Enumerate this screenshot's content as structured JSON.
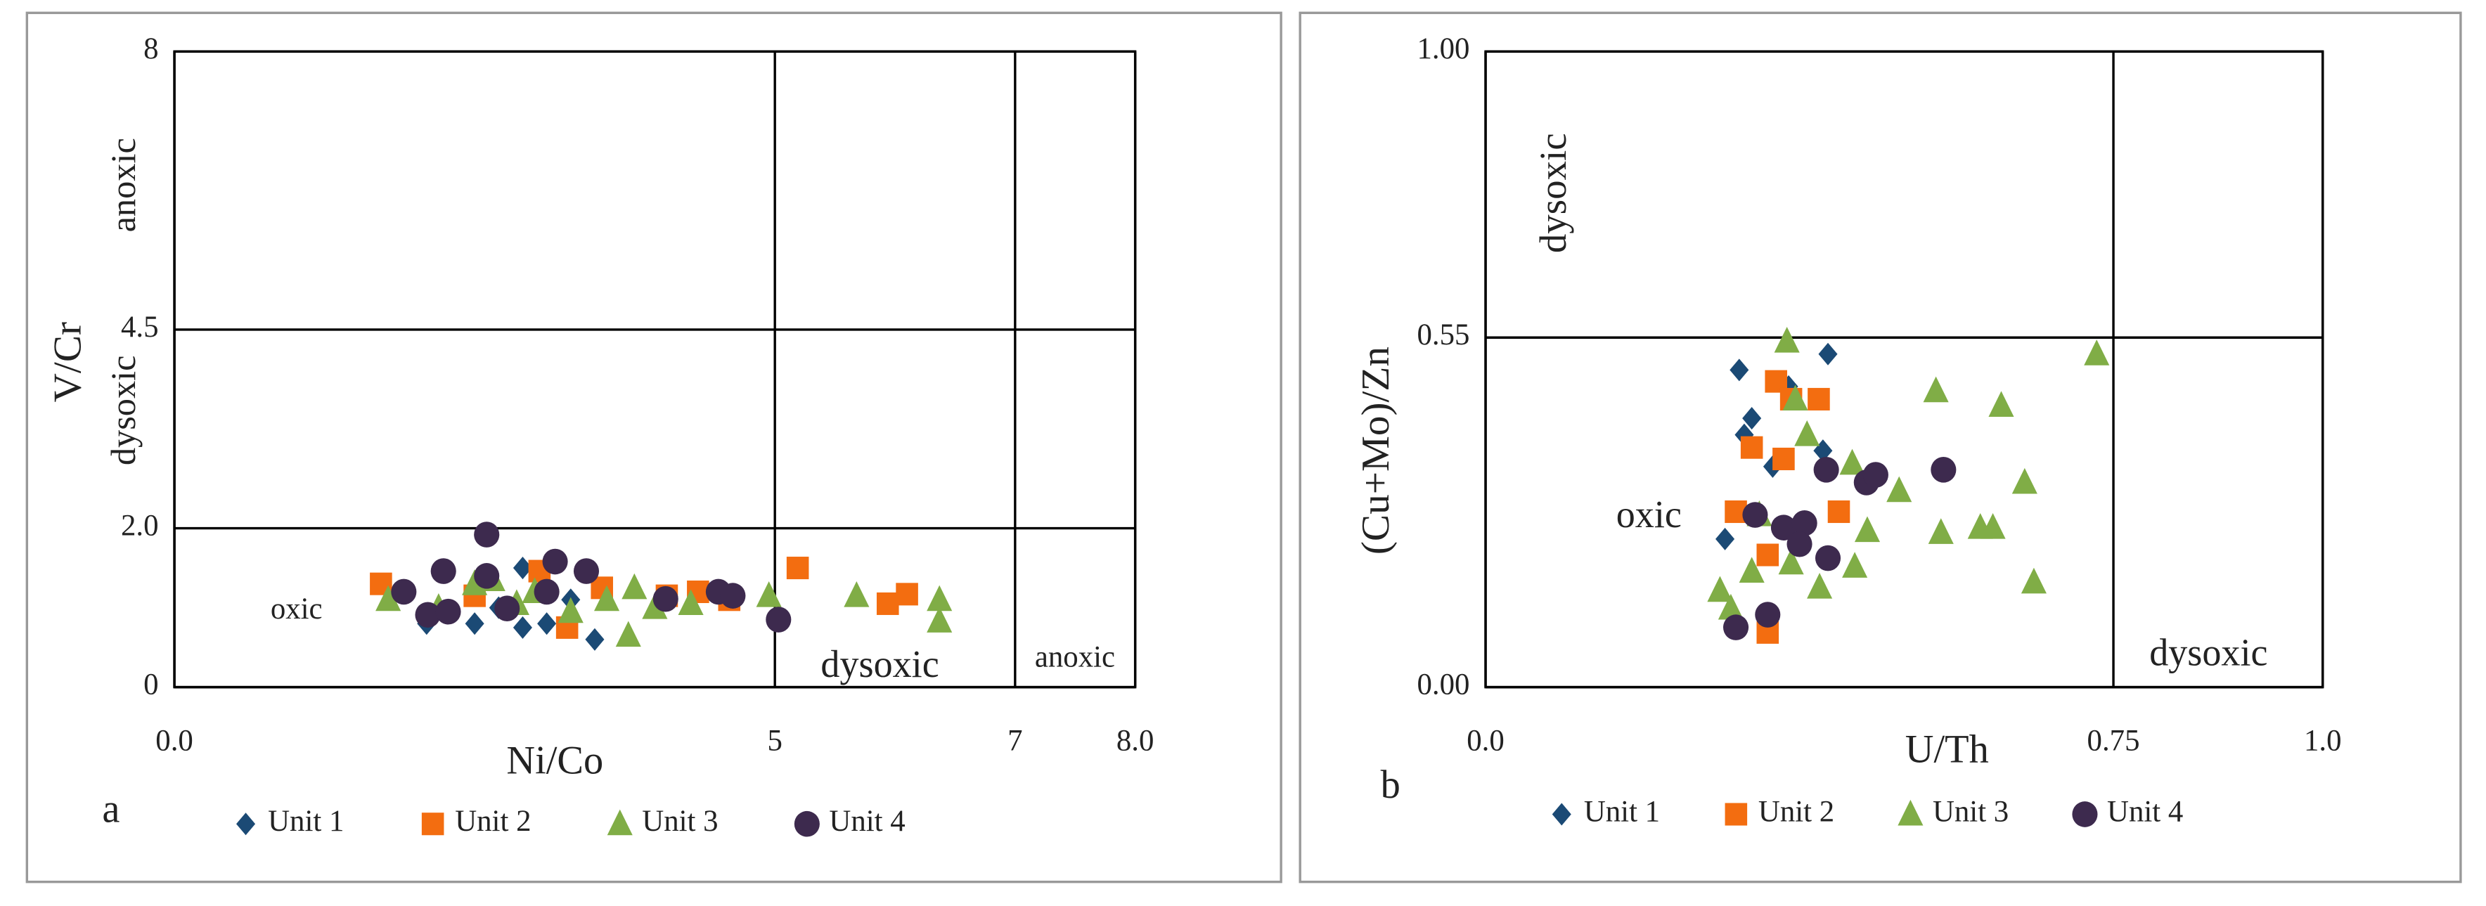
{
  "chart_data": [
    {
      "type": "scatter",
      "panel_label": "a",
      "x_label": "Ni/Co",
      "y_label": "V/Cr",
      "xlim": [
        0,
        8
      ],
      "xticks": [
        {
          "value": 0,
          "label": "0.0"
        },
        5,
        7,
        {
          "value": 8,
          "label": "8.0"
        }
      ],
      "ylim": [
        0,
        8
      ],
      "yticks": [
        0,
        {
          "value": 2,
          "label": "2.0"
        },
        4.5,
        8
      ],
      "grid": true,
      "annotations": [
        "anoxic",
        "dysoxic",
        "oxic",
        "dysoxic",
        "anoxic"
      ],
      "series": [
        {
          "name": "Unit 1",
          "color": "#1b4a75",
          "marker": "diamond",
          "x": [
            2.1,
            2.5,
            2.9,
            2.9,
            3.1,
            3.5,
            3.3,
            2.7,
            4.1
          ],
          "y": [
            0.8,
            0.8,
            1.5,
            0.75,
            0.8,
            0.6,
            1.1,
            1.0,
            1.1
          ]
        },
        {
          "name": "Unit 2",
          "color": "#f36d10",
          "marker": "square",
          "x": [
            1.72,
            2.5,
            3.04,
            3.27,
            3.56,
            4.36,
            4.62,
            5.19,
            5.94,
            6.1,
            4.1
          ],
          "y": [
            1.3,
            1.15,
            1.46,
            0.75,
            1.25,
            1.2,
            1.1,
            1.5,
            1.05,
            1.17,
            1.15
          ]
        },
        {
          "name": "Unit 3",
          "color": "#80ad46",
          "marker": "triangle",
          "x": [
            4.95,
            5.68,
            6.37,
            6.37,
            3.78,
            3.83,
            1.78,
            2.2,
            2.5,
            2.85,
            3.0,
            3.3,
            3.6,
            4.0,
            4.3,
            2.65
          ],
          "y": [
            1.15,
            1.15,
            1.1,
            0.83,
            0.65,
            1.25,
            1.1,
            1.0,
            1.3,
            1.05,
            1.2,
            0.95,
            1.1,
            1.0,
            1.05,
            1.35
          ]
        },
        {
          "name": "Unit 4",
          "color": "#3d2a4e",
          "marker": "circle",
          "x": [
            1.91,
            2.24,
            2.6,
            2.6,
            2.11,
            2.28,
            3.17,
            3.1,
            3.43,
            4.09,
            4.53,
            4.65,
            5.03,
            2.77
          ],
          "y": [
            1.2,
            1.46,
            1.92,
            1.4,
            0.91,
            0.95,
            1.58,
            1.2,
            1.46,
            1.11,
            1.2,
            1.15,
            0.85,
            0.99
          ]
        }
      ]
    },
    {
      "type": "scatter",
      "panel_label": "b",
      "x_label": "U/Th",
      "y_label": "(Cu+Mo)/Zn",
      "xlim": [
        0,
        1
      ],
      "xticks": [
        {
          "value": 0,
          "label": "0.0"
        },
        0.75,
        {
          "value": 1,
          "label": "1.0"
        }
      ],
      "ylim": [
        0,
        1
      ],
      "yticks": [
        {
          "value": 0,
          "label": "0.00"
        },
        0.55,
        {
          "value": 1,
          "label": "1.00"
        }
      ],
      "grid": true,
      "annotations": [
        "dysoxic",
        "oxic",
        "dysoxic"
      ],
      "series": [
        {
          "name": "Unit 1",
          "color": "#1b4a75",
          "marker": "diamond",
          "x": [
            0.303,
            0.409,
            0.318,
            0.309,
            0.286,
            0.343,
            0.403,
            0.362
          ],
          "y": [
            0.499,
            0.524,
            0.423,
            0.397,
            0.233,
            0.347,
            0.372,
            0.473
          ]
        },
        {
          "name": "Unit 2",
          "color": "#f36d10",
          "marker": "square",
          "x": [
            0.347,
            0.398,
            0.318,
            0.356,
            0.337,
            0.337,
            0.299,
            0.422,
            0.365
          ],
          "y": [
            0.481,
            0.453,
            0.377,
            0.359,
            0.208,
            0.086,
            0.276,
            0.276,
            0.453
          ]
        },
        {
          "name": "Unit 3",
          "color": "#80ad46",
          "marker": "triangle",
          "x": [
            0.36,
            0.37,
            0.538,
            0.616,
            0.73,
            0.644,
            0.655,
            0.591,
            0.544,
            0.494,
            0.438,
            0.441,
            0.399,
            0.28,
            0.293,
            0.318,
            0.365,
            0.456,
            0.384,
            0.327,
            0.606
          ],
          "y": [
            0.544,
            0.453,
            0.466,
            0.443,
            0.524,
            0.322,
            0.165,
            0.251,
            0.243,
            0.309,
            0.352,
            0.19,
            0.157,
            0.152,
            0.124,
            0.182,
            0.195,
            0.246,
            0.397,
            0.271,
            0.251
          ]
        },
        {
          "name": "Unit 4",
          "color": "#3d2a4e",
          "marker": "circle",
          "x": [
            0.322,
            0.356,
            0.381,
            0.375,
            0.409,
            0.407,
            0.455,
            0.466,
            0.547,
            0.299,
            0.337
          ],
          "y": [
            0.271,
            0.251,
            0.258,
            0.225,
            0.203,
            0.342,
            0.322,
            0.334,
            0.342,
            0.094,
            0.114
          ]
        }
      ]
    }
  ]
}
